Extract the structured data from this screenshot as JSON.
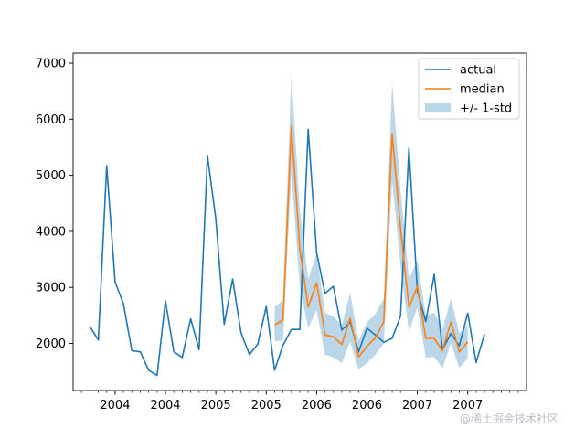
{
  "chart_data": {
    "type": "line",
    "title": "",
    "xlabel": "",
    "ylabel": "",
    "grid": false,
    "legend_placement": "top-right",
    "xlim": [
      0,
      54
    ],
    "ylim": [
      1160,
      7180
    ],
    "yticks": [
      2000,
      3000,
      4000,
      5000,
      6000,
      7000
    ],
    "ytick_labels": [
      "2000",
      "3000",
      "4000",
      "5000",
      "6000",
      "7000"
    ],
    "x_major_ticks": [
      5,
      11,
      17,
      23,
      29,
      35,
      41,
      47
    ],
    "x_tick_labels": [
      "2004",
      "2004",
      "2005",
      "2005",
      "2006",
      "2006",
      "2007",
      "2007"
    ],
    "series": [
      {
        "name": "actual",
        "color": "#1f77b4",
        "x_start": 2,
        "values": [
          2300,
          2060,
          5170,
          3100,
          2700,
          1870,
          1850,
          1520,
          1430,
          2760,
          1850,
          1750,
          2440,
          1890,
          5350,
          4220,
          2340,
          3150,
          2190,
          1800,
          1990,
          2660,
          1520,
          1970,
          2250,
          2250,
          5820,
          3620,
          2890,
          3020,
          2240,
          2380,
          1850,
          2270,
          2150,
          2020,
          2090,
          2490,
          5490,
          2930,
          2390,
          3230,
          1890,
          2180,
          1960,
          2540,
          1660,
          2170
        ]
      },
      {
        "name": "median",
        "color": "#ff7f0e",
        "x_start": 24,
        "values": [
          2330,
          2420,
          5880,
          3680,
          2650,
          3080,
          2150,
          2120,
          1980,
          2450,
          1760,
          1950,
          2100,
          2390,
          5740,
          4050,
          2640,
          3020,
          2090,
          2090,
          1870,
          2380,
          1850,
          2030
        ]
      }
    ],
    "band": {
      "name": "+/- 1-std",
      "color": "#1f77b4",
      "alpha": 0.3,
      "x_start": 24,
      "lower": [
        2040,
        2050,
        5050,
        3000,
        2270,
        2600,
        1800,
        1750,
        1650,
        2030,
        1530,
        1650,
        1800,
        2000,
        4900,
        3380,
        2200,
        2650,
        1750,
        1760,
        1560,
        2000,
        1560,
        1730
      ],
      "upper": [
        2650,
        2770,
        6800,
        4380,
        3150,
        3600,
        2550,
        2480,
        2320,
        2900,
        2050,
        2380,
        2530,
        2800,
        6650,
        4730,
        3150,
        3480,
        2500,
        2550,
        2250,
        2800,
        2180,
        2350
      ]
    }
  },
  "watermark": "@稀土掘金技术社区"
}
